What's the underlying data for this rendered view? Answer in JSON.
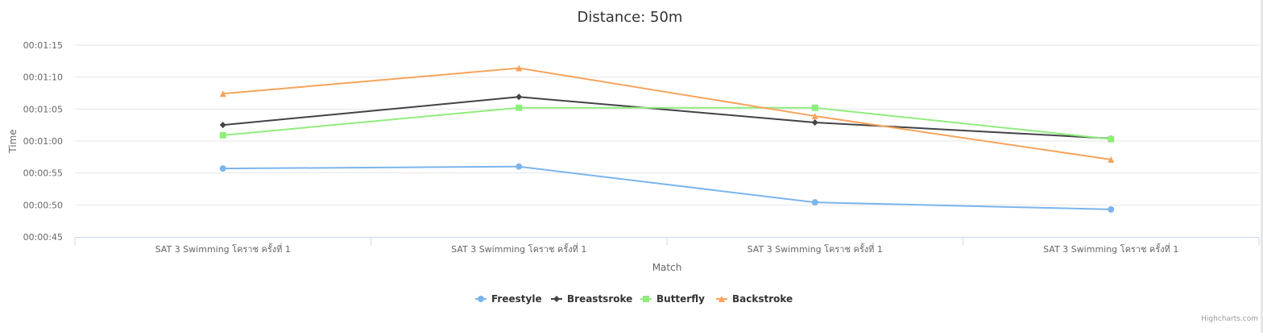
{
  "chart_data": {
    "type": "line",
    "title": "Distance: 50m",
    "xlabel": "Match",
    "ylabel": "Time",
    "categories": [
      "SAT 3 Swimming โคราช ครั้งที่ 1",
      "SAT 3 Swimming โคราช ครั้งที่ 1",
      "SAT 3 Swimming โคราช ครั้งที่ 1",
      "SAT 3 Swimming โคราช ครั้งที่ 1"
    ],
    "y_unit": "seconds",
    "ylim": [
      45,
      75
    ],
    "yticks": [
      45,
      50,
      55,
      60,
      65,
      70,
      75
    ],
    "ytick_labels": [
      "00:00:45",
      "00:00:50",
      "00:00:55",
      "00:01:00",
      "00:01:05",
      "00:01:10",
      "00:01:15"
    ],
    "grid": true,
    "legend_position": "bottom-center",
    "series": [
      {
        "name": "Freestyle",
        "color": "#7cb5ec",
        "marker": "circle",
        "values": [
          55.7,
          56.0,
          50.4,
          49.3
        ]
      },
      {
        "name": "Breastsroke",
        "color": "#434348",
        "marker": "diamond",
        "values": [
          62.5,
          66.9,
          62.9,
          60.4
        ]
      },
      {
        "name": "Butterfly",
        "color": "#90ed7d",
        "marker": "square",
        "values": [
          60.9,
          65.2,
          65.2,
          60.3
        ]
      },
      {
        "name": "Backstroke",
        "color": "#f7a35c",
        "marker": "triangle",
        "values": [
          67.4,
          71.4,
          63.9,
          57.1
        ]
      }
    ]
  },
  "credits": "Highcharts.com"
}
